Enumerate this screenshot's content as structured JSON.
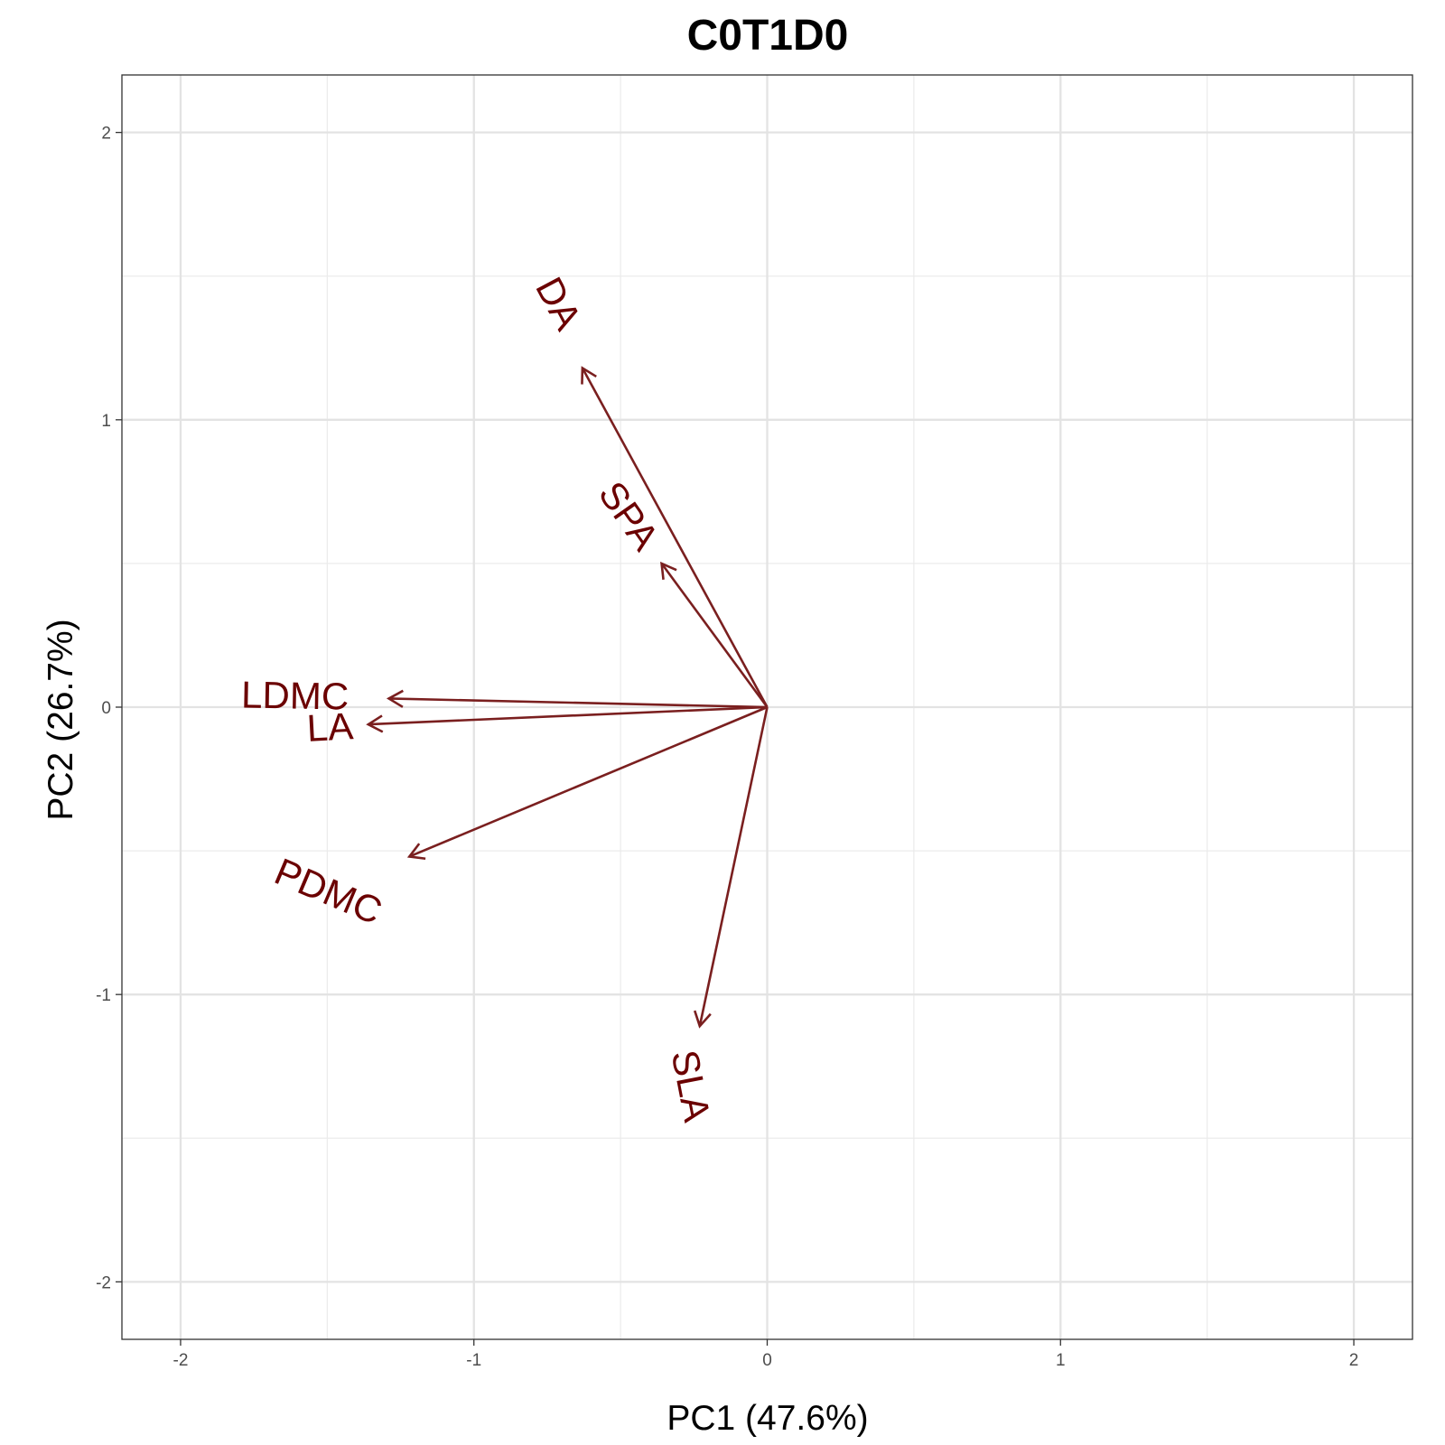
{
  "chart_data": {
    "type": "biplot",
    "title": "C0T1D0",
    "xlabel": "PC1 (47.6%)",
    "ylabel": "PC2 (26.7%)",
    "xlim": [
      -2.2,
      2.2
    ],
    "ylim": [
      -2.2,
      2.2
    ],
    "x_ticks": [
      -2,
      -1,
      0,
      1,
      2
    ],
    "y_ticks": [
      -2,
      -1,
      0,
      1,
      2
    ],
    "grid": true,
    "arrow_color": "#7a1f1f",
    "label_color": "#6b0000",
    "loadings": [
      {
        "name": "DA",
        "x": -0.63,
        "y": 1.18,
        "label_x": -0.72,
        "label_y": 1.4,
        "label_angle": -62
      },
      {
        "name": "SPA",
        "x": -0.36,
        "y": 0.5,
        "label_x": -0.48,
        "label_y": 0.66,
        "label_angle": -55
      },
      {
        "name": "LDMC",
        "x": -1.29,
        "y": 0.03,
        "label_x": -1.61,
        "label_y": 0.03,
        "label_angle": -1
      },
      {
        "name": "LA",
        "x": -1.36,
        "y": -0.06,
        "label_x": -1.49,
        "label_y": -0.08,
        "label_angle": 3
      },
      {
        "name": "PDMC",
        "x": -1.22,
        "y": -0.52,
        "label_x": -1.5,
        "label_y": -0.65,
        "label_angle": -23
      },
      {
        "name": "SLA",
        "x": -0.23,
        "y": -1.11,
        "label_x": -0.27,
        "label_y": -1.32,
        "label_angle": -79
      }
    ]
  }
}
